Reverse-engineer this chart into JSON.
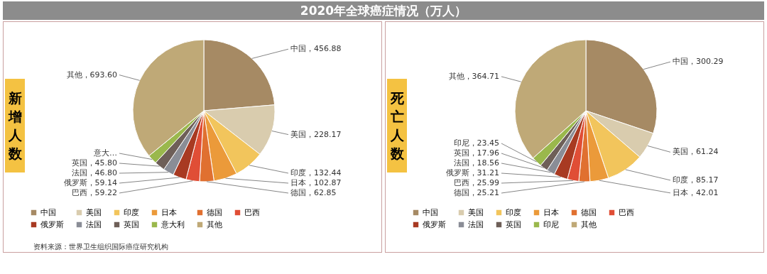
{
  "chart_data": [
    {
      "type": "pie",
      "title": "2020年全球癌症情况（万人）",
      "subtitle": "新增人数",
      "categories": [
        "中国",
        "美国",
        "印度",
        "日本",
        "德国",
        "巴西",
        "俄罗斯",
        "法国",
        "英国",
        "意大利",
        "其他"
      ],
      "values": [
        456.88,
        228.17,
        132.44,
        102.87,
        62.85,
        59.22,
        59.14,
        46.8,
        45.8,
        41.5,
        693.6
      ],
      "value_labels": [
        "中国，456.88",
        "美国，228.17",
        "印度，132.44",
        "日本，102.87",
        "德国，62.85",
        "巴西，59.22",
        "俄罗斯，59.14",
        "法国，46.80",
        "英国，45.80",
        "意大…",
        "其他，693.60"
      ],
      "colors": [
        "#a68a64",
        "#d9ccae",
        "#f2c55c",
        "#eb9a3a",
        "#e07030",
        "#e04e36",
        "#a83a22",
        "#8a8d96",
        "#6e5f58",
        "#9ab84c",
        "#bfa977"
      ],
      "legend": "bottom",
      "annotations": [
        "资料来源：世界卫生组织国际癌症研究机构"
      ]
    },
    {
      "type": "pie",
      "subtitle": "死亡人数",
      "categories": [
        "中国",
        "美国",
        "印度",
        "日本",
        "德国",
        "巴西",
        "俄罗斯",
        "法国",
        "英国",
        "印尼",
        "其他"
      ],
      "values": [
        300.29,
        61.24,
        85.17,
        42.01,
        25.21,
        25.99,
        31.21,
        18.56,
        17.96,
        23.45,
        364.71
      ],
      "value_labels": [
        "中国，300.29",
        "美国，61.24",
        "印度，85.17",
        "日本，42.01",
        "德国，25.21",
        "巴西，25.99",
        "俄罗斯，31.21",
        "法国，18.56",
        "英国，17.96",
        "印尼，23.45",
        "其他，364.71"
      ],
      "colors": [
        "#a68a64",
        "#d9ccae",
        "#f2c55c",
        "#eb9a3a",
        "#e07030",
        "#e04e36",
        "#a83a22",
        "#8a8d96",
        "#6e5f58",
        "#9ab84c",
        "#bfa977"
      ],
      "legend": "bottom"
    }
  ]
}
